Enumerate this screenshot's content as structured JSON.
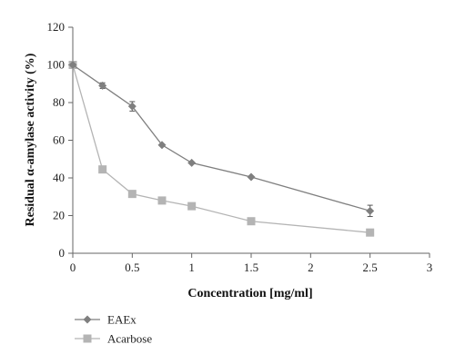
{
  "chart_data": {
    "type": "line",
    "title": "",
    "xlabel": "Concentration [mg/ml]",
    "ylabel": "Residual α-amylase activity (%)",
    "xlim": [
      0,
      3
    ],
    "ylim": [
      0,
      120
    ],
    "xticks": [
      "0",
      "0.5",
      "1",
      "1.5",
      "2",
      "2.5",
      "3"
    ],
    "yticks": [
      "0",
      "20",
      "40",
      "60",
      "80",
      "100",
      "120"
    ],
    "grid": false,
    "legend_position": "bottom-left",
    "series": [
      {
        "name": "EAEx",
        "marker": "diamond",
        "color": "#7f7f7f",
        "points": [
          {
            "x": 0,
            "y": 100,
            "err": 0
          },
          {
            "x": 0.25,
            "y": 89,
            "err": 1.5
          },
          {
            "x": 0.5,
            "y": 78,
            "err": 2.5
          },
          {
            "x": 0.75,
            "y": 57.5,
            "err": 0
          },
          {
            "x": 1,
            "y": 48,
            "err": 0
          },
          {
            "x": 1.5,
            "y": 40.5,
            "err": 0
          },
          {
            "x": 2.5,
            "y": 22.5,
            "err": 3
          }
        ]
      },
      {
        "name": "Acarbose",
        "marker": "square",
        "color": "#b4b4b4",
        "points": [
          {
            "x": 0,
            "y": 100,
            "err": 0
          },
          {
            "x": 0.25,
            "y": 44.5,
            "err": 0
          },
          {
            "x": 0.5,
            "y": 31.5,
            "err": 0
          },
          {
            "x": 0.75,
            "y": 28,
            "err": 0
          },
          {
            "x": 1,
            "y": 25,
            "err": 0
          },
          {
            "x": 1.5,
            "y": 17,
            "err": 0
          },
          {
            "x": 2.5,
            "y": 11,
            "err": 0
          }
        ]
      }
    ]
  }
}
